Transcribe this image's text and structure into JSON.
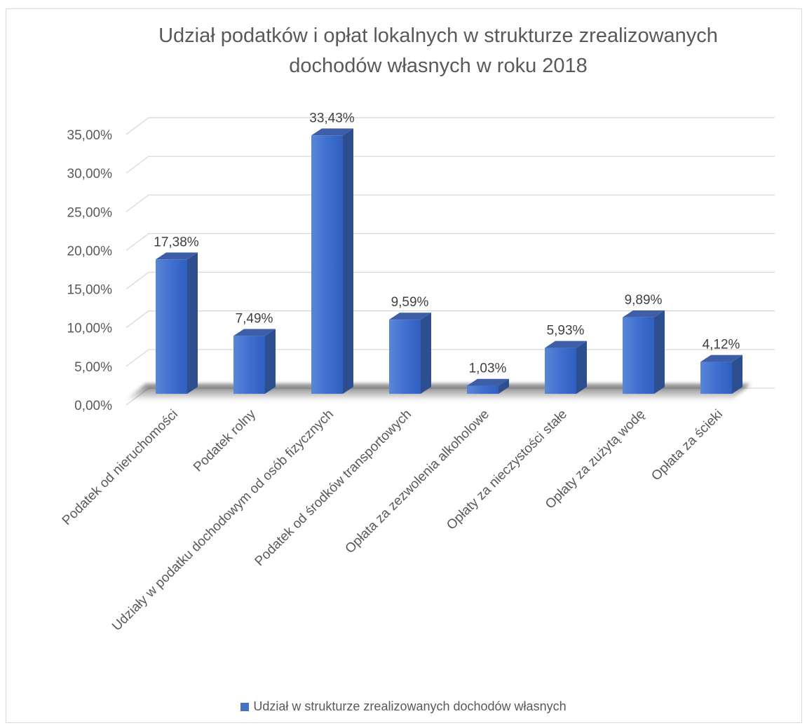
{
  "chart_data": {
    "type": "bar",
    "title": "Udział podatków i opłat lokalnych w strukturze zrealizowanych\ndochodów własnych w roku 2018",
    "categories": [
      "Podatek od nieruchomości",
      "Podatek rolny",
      "Udziały w podatku dochodowym od osób fizycznych",
      "Podatek od środków transportowych",
      "Opłata za zezwolenia alkoholowe",
      "Opłaty za nieczystości stałe",
      "Opłaty za zużytą wodę",
      "Opłata za ścieki"
    ],
    "series": [
      {
        "name": "Udział w strukturze zrealizowanych dochodów własnych",
        "values": [
          17.38,
          7.49,
          33.43,
          9.59,
          1.03,
          5.93,
          9.89,
          4.12
        ],
        "labels": [
          "17,38%",
          "7,49%",
          "33,43%",
          "9,59%",
          "1,03%",
          "5,93%",
          "9,89%",
          "4,12%"
        ]
      }
    ],
    "ylim": [
      0,
      35
    ],
    "yticks": [
      "0,00%",
      "5,00%",
      "10,00%",
      "15,00%",
      "20,00%",
      "25,00%",
      "30,00%",
      "35,00%"
    ],
    "xlabel": "",
    "ylabel": "",
    "grid": true,
    "legend": "bottom",
    "bar_color": "#4472c4",
    "three_d": true
  }
}
